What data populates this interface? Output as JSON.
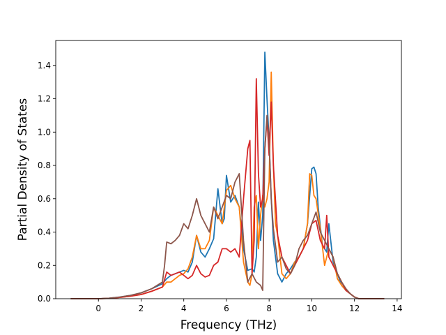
{
  "chart_data": {
    "type": "line",
    "title": "",
    "xlabel": "Frequency (THz)",
    "ylabel": "Partial Density of States",
    "xlim": [
      -2.0,
      14.2
    ],
    "ylim": [
      0.0,
      1.55
    ],
    "xticks": [
      0,
      2,
      4,
      6,
      8,
      10,
      12,
      14
    ],
    "yticks": [
      0.0,
      0.2,
      0.4,
      0.6,
      0.8,
      1.0,
      1.2,
      1.4
    ],
    "xtick_labels": [
      "0",
      "2",
      "4",
      "6",
      "8",
      "10",
      "12",
      "14"
    ],
    "ytick_labels": [
      "0.0",
      "0.2",
      "0.4",
      "0.6",
      "0.8",
      "1.0",
      "1.2",
      "1.4"
    ],
    "grid": false,
    "legend": "none",
    "series": [
      {
        "color": "#1f77b4",
        "x": [
          -1.3,
          0,
          0.5,
          1,
          1.5,
          2,
          2.5,
          3,
          3.2,
          3.4,
          3.6,
          3.8,
          4,
          4.2,
          4.4,
          4.6,
          4.8,
          5,
          5.2,
          5.4,
          5.6,
          5.8,
          5.9,
          6,
          6.2,
          6.4,
          6.6,
          6.8,
          7,
          7.2,
          7.3,
          7.4,
          7.5,
          7.6,
          7.7,
          7.8,
          7.9,
          8,
          8.1,
          8.2,
          8.4,
          8.6,
          8.8,
          9,
          9.2,
          9.4,
          9.6,
          9.8,
          10,
          10.1,
          10.2,
          10.3,
          10.5,
          10.7,
          10.8,
          11,
          11.2,
          11.4,
          11.6,
          11.8,
          12,
          12.2,
          13.4
        ],
        "y": [
          0,
          0,
          0.003,
          0.01,
          0.02,
          0.035,
          0.06,
          0.09,
          0.12,
          0.14,
          0.15,
          0.16,
          0.17,
          0.16,
          0.22,
          0.38,
          0.28,
          0.25,
          0.3,
          0.36,
          0.66,
          0.45,
          0.48,
          0.74,
          0.58,
          0.62,
          0.55,
          0.3,
          0.17,
          0.18,
          0.16,
          0.25,
          0.58,
          0.35,
          0.5,
          1.48,
          1.2,
          0.95,
          0.6,
          0.35,
          0.15,
          0.1,
          0.15,
          0.18,
          0.22,
          0.25,
          0.3,
          0.45,
          0.78,
          0.79,
          0.75,
          0.55,
          0.32,
          0.28,
          0.45,
          0.22,
          0.15,
          0.08,
          0.05,
          0.03,
          0.01,
          0,
          0
        ]
      },
      {
        "color": "#ff7f0e",
        "x": [
          -1.3,
          0,
          0.5,
          1,
          1.5,
          2,
          2.5,
          3,
          3.2,
          3.4,
          3.6,
          3.8,
          4,
          4.2,
          4.4,
          4.6,
          4.8,
          5,
          5.2,
          5.4,
          5.6,
          5.8,
          6,
          6.2,
          6.4,
          6.6,
          6.8,
          7,
          7.1,
          7.2,
          7.3,
          7.4,
          7.5,
          7.6,
          7.7,
          7.8,
          7.9,
          8,
          8.1,
          8.2,
          8.3,
          8.4,
          8.6,
          8.8,
          9,
          9.2,
          9.4,
          9.6,
          9.8,
          9.9,
          10,
          10.1,
          10.2,
          10.4,
          10.6,
          10.8,
          11,
          11.2,
          11.4,
          11.6,
          11.8,
          12,
          12.2,
          13.4
        ],
        "y": [
          0,
          0,
          0.002,
          0.008,
          0.015,
          0.025,
          0.045,
          0.07,
          0.1,
          0.1,
          0.12,
          0.14,
          0.15,
          0.18,
          0.25,
          0.38,
          0.3,
          0.3,
          0.35,
          0.55,
          0.5,
          0.45,
          0.65,
          0.68,
          0.6,
          0.55,
          0.22,
          0.1,
          0.08,
          0.15,
          0.55,
          0.62,
          0.3,
          0.5,
          0.62,
          0.55,
          0.6,
          0.7,
          1.36,
          0.8,
          0.45,
          0.38,
          0.15,
          0.12,
          0.15,
          0.22,
          0.25,
          0.3,
          0.45,
          0.75,
          0.74,
          0.62,
          0.6,
          0.42,
          0.2,
          0.3,
          0.25,
          0.12,
          0.08,
          0.05,
          0.03,
          0.01,
          0,
          0
        ]
      },
      {
        "color": "#d62728",
        "x": [
          -1.3,
          0,
          0.5,
          1,
          1.5,
          2,
          2.5,
          3,
          3.2,
          3.4,
          3.6,
          3.8,
          4,
          4.2,
          4.4,
          4.6,
          4.8,
          5,
          5.2,
          5.4,
          5.6,
          5.8,
          6,
          6.2,
          6.4,
          6.6,
          6.8,
          7,
          7.1,
          7.2,
          7.3,
          7.4,
          7.5,
          7.6,
          7.7,
          7.8,
          7.9,
          8,
          8.1,
          8.2,
          8.4,
          8.6,
          8.8,
          9,
          9.2,
          9.4,
          9.6,
          9.8,
          10,
          10.2,
          10.4,
          10.6,
          10.7,
          10.8,
          11,
          11.2,
          11.4,
          11.6,
          11.8,
          12,
          12.2,
          13.4
        ],
        "y": [
          0,
          0,
          0.002,
          0.008,
          0.015,
          0.025,
          0.045,
          0.07,
          0.16,
          0.14,
          0.15,
          0.16,
          0.14,
          0.12,
          0.14,
          0.2,
          0.15,
          0.13,
          0.14,
          0.2,
          0.22,
          0.3,
          0.3,
          0.28,
          0.3,
          0.25,
          0.6,
          0.9,
          0.95,
          0.15,
          0.35,
          1.32,
          0.75,
          0.55,
          0.6,
          0.9,
          1.08,
          0.86,
          1.18,
          0.8,
          0.38,
          0.25,
          0.2,
          0.15,
          0.2,
          0.25,
          0.3,
          0.35,
          0.45,
          0.47,
          0.35,
          0.3,
          0.5,
          0.25,
          0.2,
          0.15,
          0.1,
          0.05,
          0.03,
          0.01,
          0,
          0
        ]
      },
      {
        "color": "#8c564b",
        "x": [
          -1.3,
          0,
          0.5,
          1,
          1.5,
          2,
          2.5,
          3,
          3.1,
          3.2,
          3.4,
          3.6,
          3.8,
          4,
          4.2,
          4.4,
          4.6,
          4.8,
          5,
          5.2,
          5.4,
          5.6,
          5.8,
          6,
          6.2,
          6.4,
          6.6,
          6.8,
          7,
          7.2,
          7.4,
          7.6,
          7.7,
          7.8,
          7.9,
          8,
          8.1,
          8.2,
          8.4,
          8.6,
          8.8,
          9,
          9.2,
          9.4,
          9.6,
          9.8,
          10,
          10.2,
          10.4,
          10.6,
          10.8,
          11,
          11.2,
          11.4,
          11.6,
          11.8,
          12,
          12.2,
          13.4
        ],
        "y": [
          0,
          0,
          0.003,
          0.01,
          0.02,
          0.035,
          0.06,
          0.1,
          0.2,
          0.34,
          0.33,
          0.35,
          0.38,
          0.45,
          0.42,
          0.5,
          0.6,
          0.5,
          0.45,
          0.4,
          0.55,
          0.48,
          0.55,
          0.62,
          0.6,
          0.7,
          0.75,
          0.35,
          0.1,
          0.15,
          0.1,
          0.08,
          0.05,
          0.9,
          1.1,
          0.95,
          0.6,
          0.42,
          0.22,
          0.25,
          0.18,
          0.15,
          0.2,
          0.3,
          0.35,
          0.38,
          0.45,
          0.52,
          0.4,
          0.35,
          0.3,
          0.25,
          0.15,
          0.1,
          0.06,
          0.03,
          0.01,
          0,
          0
        ]
      }
    ]
  }
}
